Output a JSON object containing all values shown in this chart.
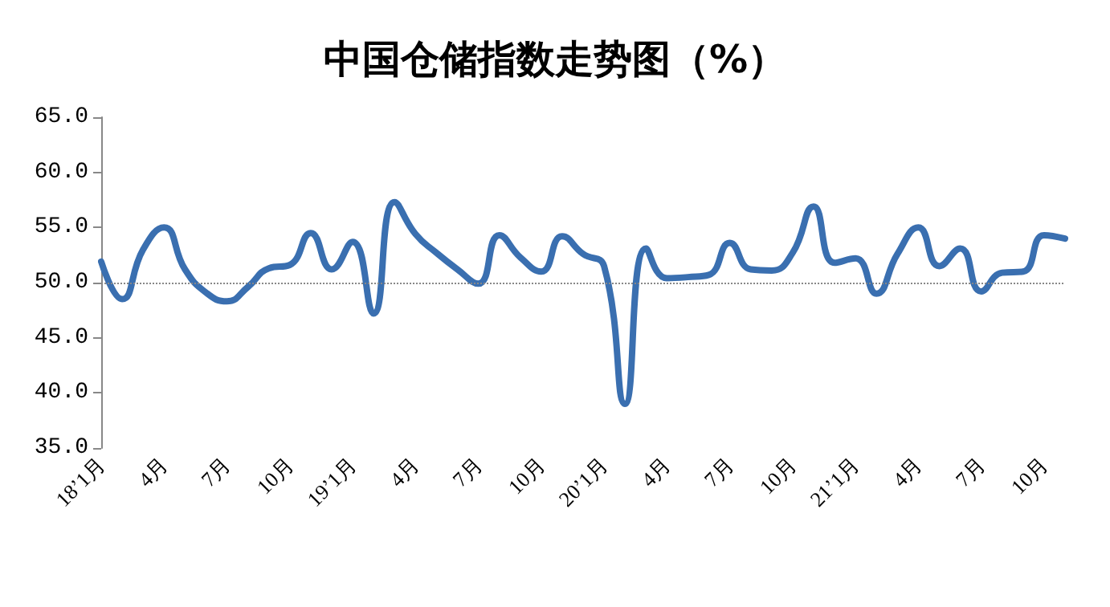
{
  "chart_data": {
    "type": "line",
    "title": "中国仓储指数走势图（%）",
    "categories": [
      "18’1月",
      null,
      null,
      "4月",
      null,
      null,
      "7月",
      null,
      null,
      "10月",
      null,
      null,
      "19’1月",
      null,
      null,
      "4月",
      null,
      null,
      "7月",
      null,
      null,
      "10月",
      null,
      null,
      "20’1月",
      null,
      null,
      "4月",
      null,
      null,
      "7月",
      null,
      null,
      "10月",
      null,
      null,
      "21’1月",
      null,
      null,
      "4月",
      null,
      null,
      "7月",
      null,
      null,
      "10月",
      null
    ],
    "series": [
      {
        "color": "#3a6fb0",
        "values": [
          51.9,
          48.5,
          53.0,
          55.0,
          51.2,
          49.1,
          48.3,
          49.6,
          51.3,
          51.6,
          54.5,
          51.2,
          53.7,
          47.2,
          57.3,
          54.4,
          52.7,
          51.2,
          49.9,
          54.3,
          52.3,
          51.0,
          54.2,
          52.6,
          51.5,
          39.0,
          53.1,
          50.4,
          50.5,
          50.7,
          53.6,
          51.2,
          51.1,
          52.7,
          56.9,
          51.8,
          52.2,
          49.0,
          52.6,
          55.0,
          51.5,
          53.1,
          49.2,
          50.9,
          51.0,
          54.3,
          54.0
        ]
      }
    ],
    "ylim": [
      35,
      65
    ],
    "yticks": [
      {
        "value": 35,
        "label": "35.0"
      },
      {
        "value": 40,
        "label": "40.0"
      },
      {
        "value": 45,
        "label": "45.0"
      },
      {
        "value": 50,
        "label": "50.0"
      },
      {
        "value": 55,
        "label": "55.0"
      },
      {
        "value": 60,
        "label": "60.0"
      },
      {
        "value": 65,
        "label": "65.0"
      }
    ],
    "ref_lines": [
      {
        "axis": "y",
        "value": 50,
        "label": null,
        "color": "#888888",
        "line_style": "dotted"
      }
    ],
    "grid": false,
    "marker": "none",
    "line_style": "solid"
  }
}
